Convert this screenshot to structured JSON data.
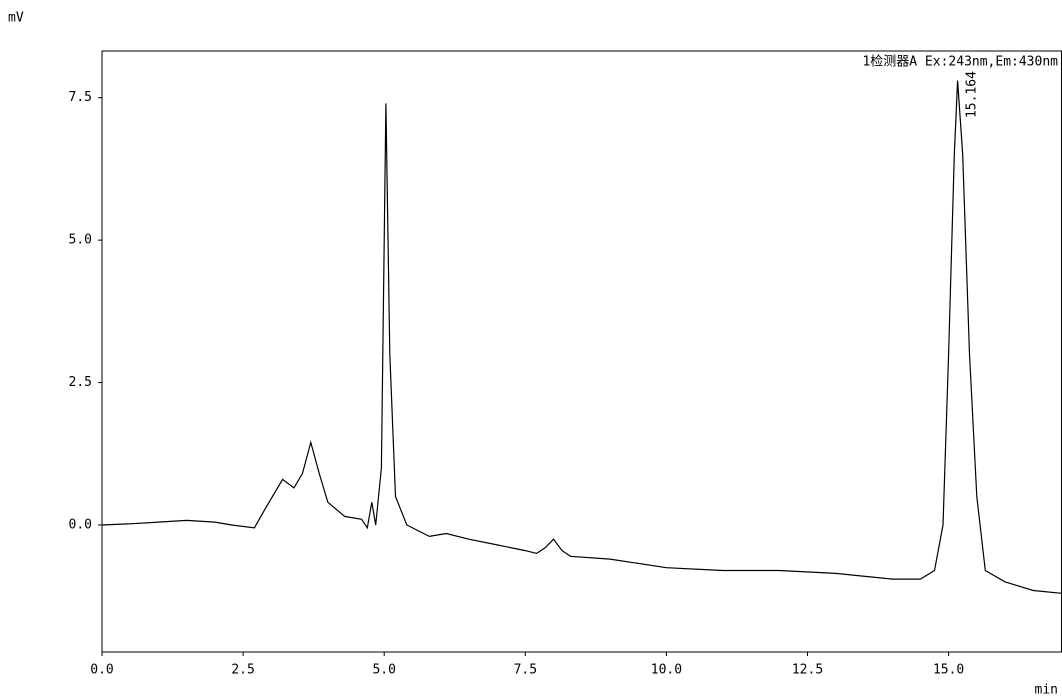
{
  "chart_data": {
    "type": "line",
    "title": "1检测器A Ex:243nm,Em:430nm",
    "y_label": "mV",
    "x_label": "min",
    "color": "#000000",
    "x": [
      0,
      0.5,
      1.0,
      1.5,
      2.0,
      2.3,
      2.7,
      2.9,
      3.2,
      3.4,
      3.55,
      3.7,
      3.85,
      4.0,
      4.3,
      4.6,
      4.7,
      4.78,
      4.85,
      4.95,
      5.03,
      5.1,
      5.2,
      5.4,
      5.8,
      6.1,
      6.5,
      7.0,
      7.5,
      7.7,
      7.85,
      8.0,
      8.15,
      8.3,
      9.0,
      10.0,
      11.0,
      12.0,
      13.0,
      14.0,
      14.5,
      14.75,
      14.9,
      15.0,
      15.1,
      15.16,
      15.25,
      15.37,
      15.5,
      15.65,
      16.0,
      16.5,
      17.0
    ],
    "values": [
      0.0,
      0.02,
      0.05,
      0.08,
      0.05,
      0.0,
      -0.05,
      0.3,
      0.8,
      0.65,
      0.9,
      1.45,
      0.9,
      0.4,
      0.15,
      0.1,
      -0.05,
      0.4,
      0.0,
      1.0,
      7.4,
      3.0,
      0.5,
      0.0,
      -0.2,
      -0.15,
      -0.25,
      -0.35,
      -0.45,
      -0.5,
      -0.4,
      -0.25,
      -0.45,
      -0.55,
      -0.6,
      -0.75,
      -0.8,
      -0.8,
      -0.85,
      -0.95,
      -0.95,
      -0.8,
      0.0,
      3.0,
      6.5,
      7.8,
      6.5,
      3.0,
      0.5,
      -0.8,
      -1.0,
      -1.15,
      -1.2
    ],
    "peak_labels": [
      15.164
    ],
    "xlim": [
      0,
      17
    ],
    "ylim": [
      -2.23,
      8.32
    ],
    "xticks": [
      {
        "value": 0,
        "label": "0.0"
      },
      2.5,
      {
        "value": 5,
        "label": "5.0"
      },
      7.5,
      {
        "value": 10,
        "label": "10.0"
      },
      12.5,
      {
        "value": 15,
        "label": "15.0"
      }
    ],
    "yticks": [
      {
        "value": 0,
        "label": "0.0"
      },
      2.5,
      {
        "value": 5,
        "label": "5.0"
      },
      7.5
    ]
  }
}
